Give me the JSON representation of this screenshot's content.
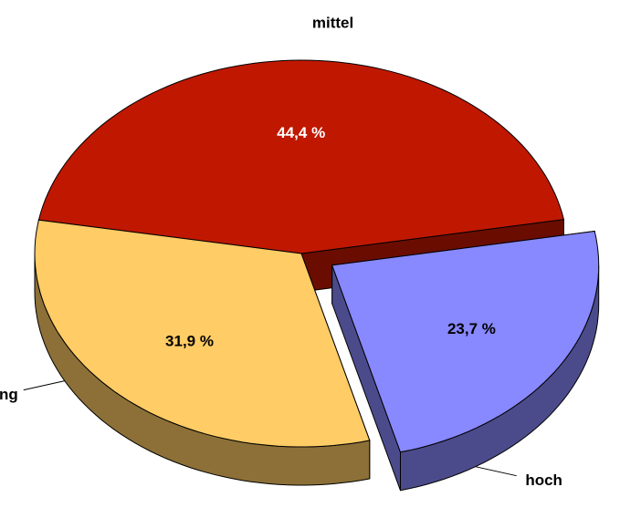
{
  "chart_data": {
    "type": "pie3d",
    "categories": [
      "mittel",
      "hoch",
      "gering"
    ],
    "values": [
      44.4,
      23.7,
      31.9
    ],
    "value_labels": [
      "44,4 %",
      "23,7 %",
      "31,9 %"
    ],
    "colors": [
      "#c01800",
      "#8888ff",
      "#ffcc66"
    ],
    "exploded": "hoch"
  }
}
